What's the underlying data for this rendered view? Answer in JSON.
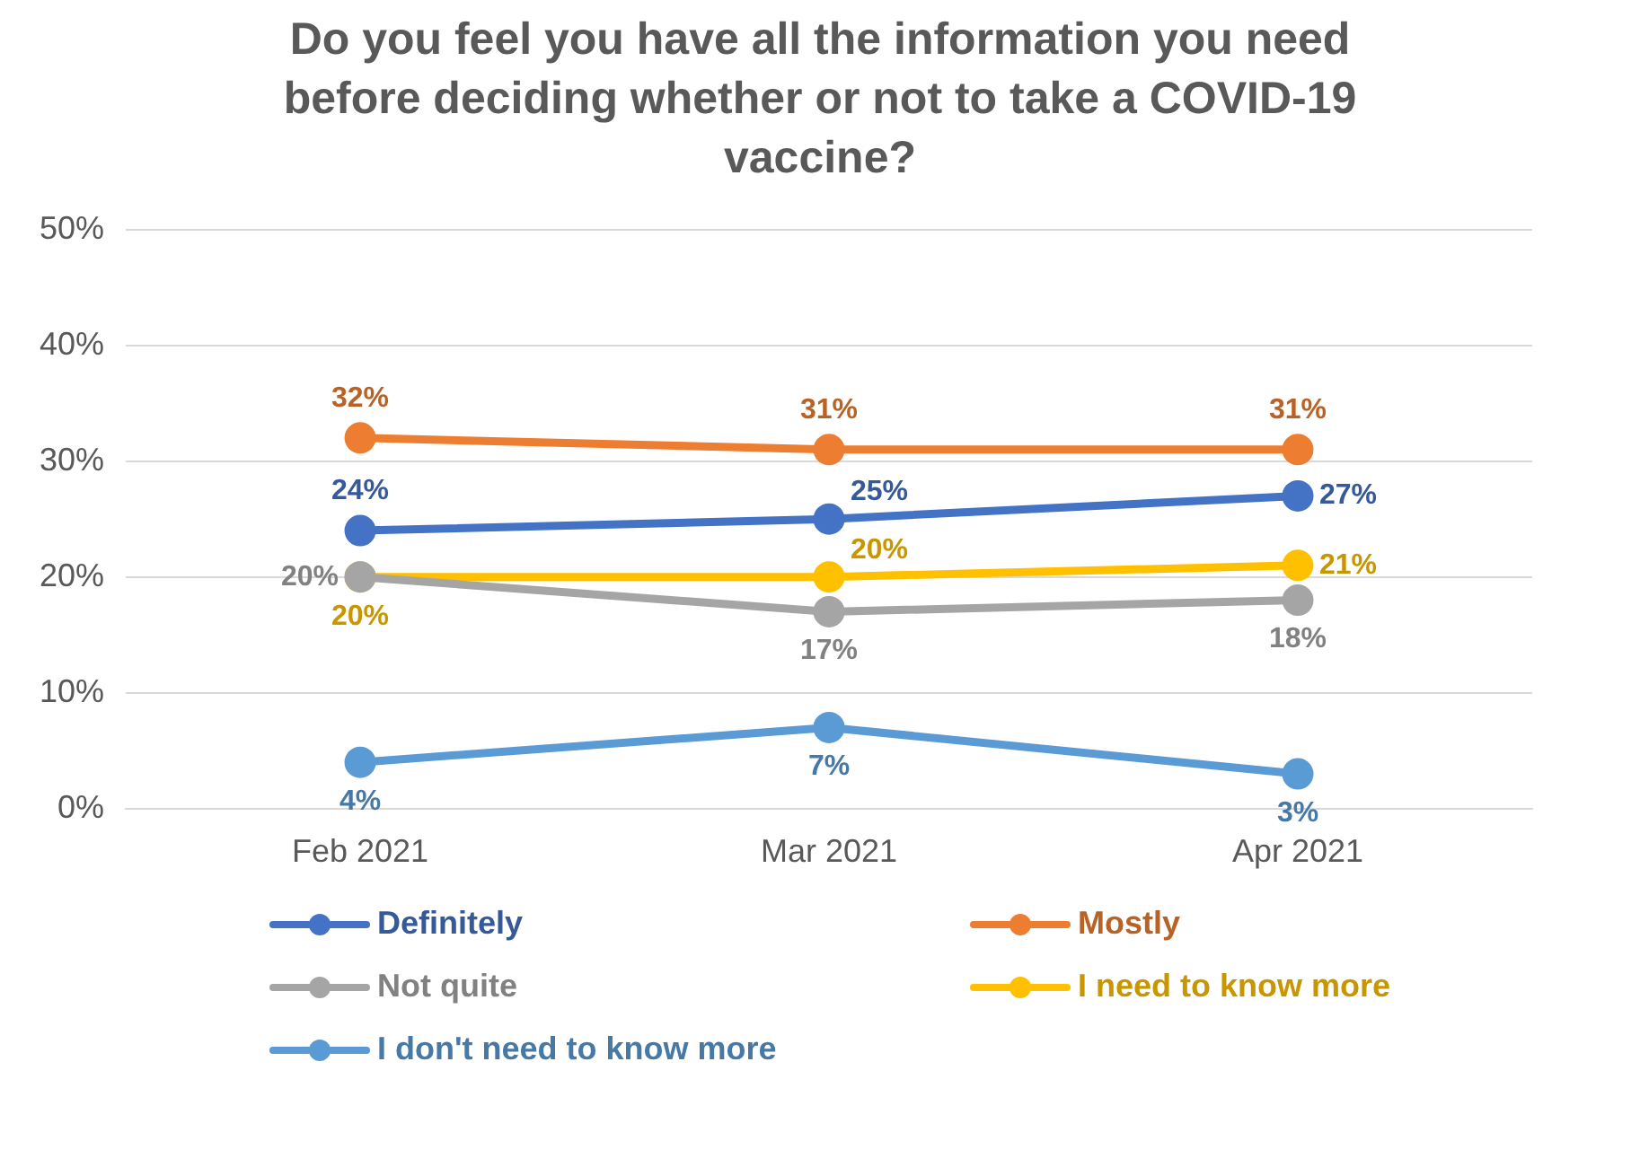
{
  "chart_data": {
    "type": "line",
    "title": "Do you feel you have all the information you need before deciding whether or not to take a COVID-19 vaccine?",
    "categories": [
      "Feb 2021",
      "Mar 2021",
      "Apr 2021"
    ],
    "series": [
      {
        "name": "Definitely",
        "color": "#4472c4",
        "values": [
          24,
          25,
          27
        ],
        "value_labels": [
          "24%",
          "25%",
          "27%"
        ]
      },
      {
        "name": "Mostly",
        "color": "#ed7d31",
        "values": [
          32,
          31,
          31
        ],
        "value_labels": [
          "32%",
          "31%",
          "31%"
        ]
      },
      {
        "name": "Not quite",
        "color": "#a5a5a5",
        "values": [
          20,
          17,
          18
        ],
        "value_labels": [
          "20%",
          "17%",
          "18%"
        ]
      },
      {
        "name": "I need to know more",
        "color": "#ffc000",
        "values": [
          20,
          20,
          21
        ],
        "value_labels": [
          "20%",
          "20%",
          "21%"
        ]
      },
      {
        "name": "I don't need to know more",
        "color": "#5b9bd5",
        "values": [
          4,
          7,
          3
        ],
        "value_labels": [
          "4%",
          "7%",
          "3%"
        ]
      }
    ],
    "ylim": [
      0,
      50
    ],
    "yticks": [
      {
        "value": 0,
        "label": "0%"
      },
      {
        "value": 10,
        "label": "10%"
      },
      {
        "value": 20,
        "label": "20%"
      },
      {
        "value": 30,
        "label": "30%"
      },
      {
        "value": 40,
        "label": "40%"
      },
      {
        "value": 50,
        "label": "50%"
      }
    ],
    "grid": "y",
    "legend": "bottom",
    "marker": "circle",
    "line_style": "solid"
  }
}
